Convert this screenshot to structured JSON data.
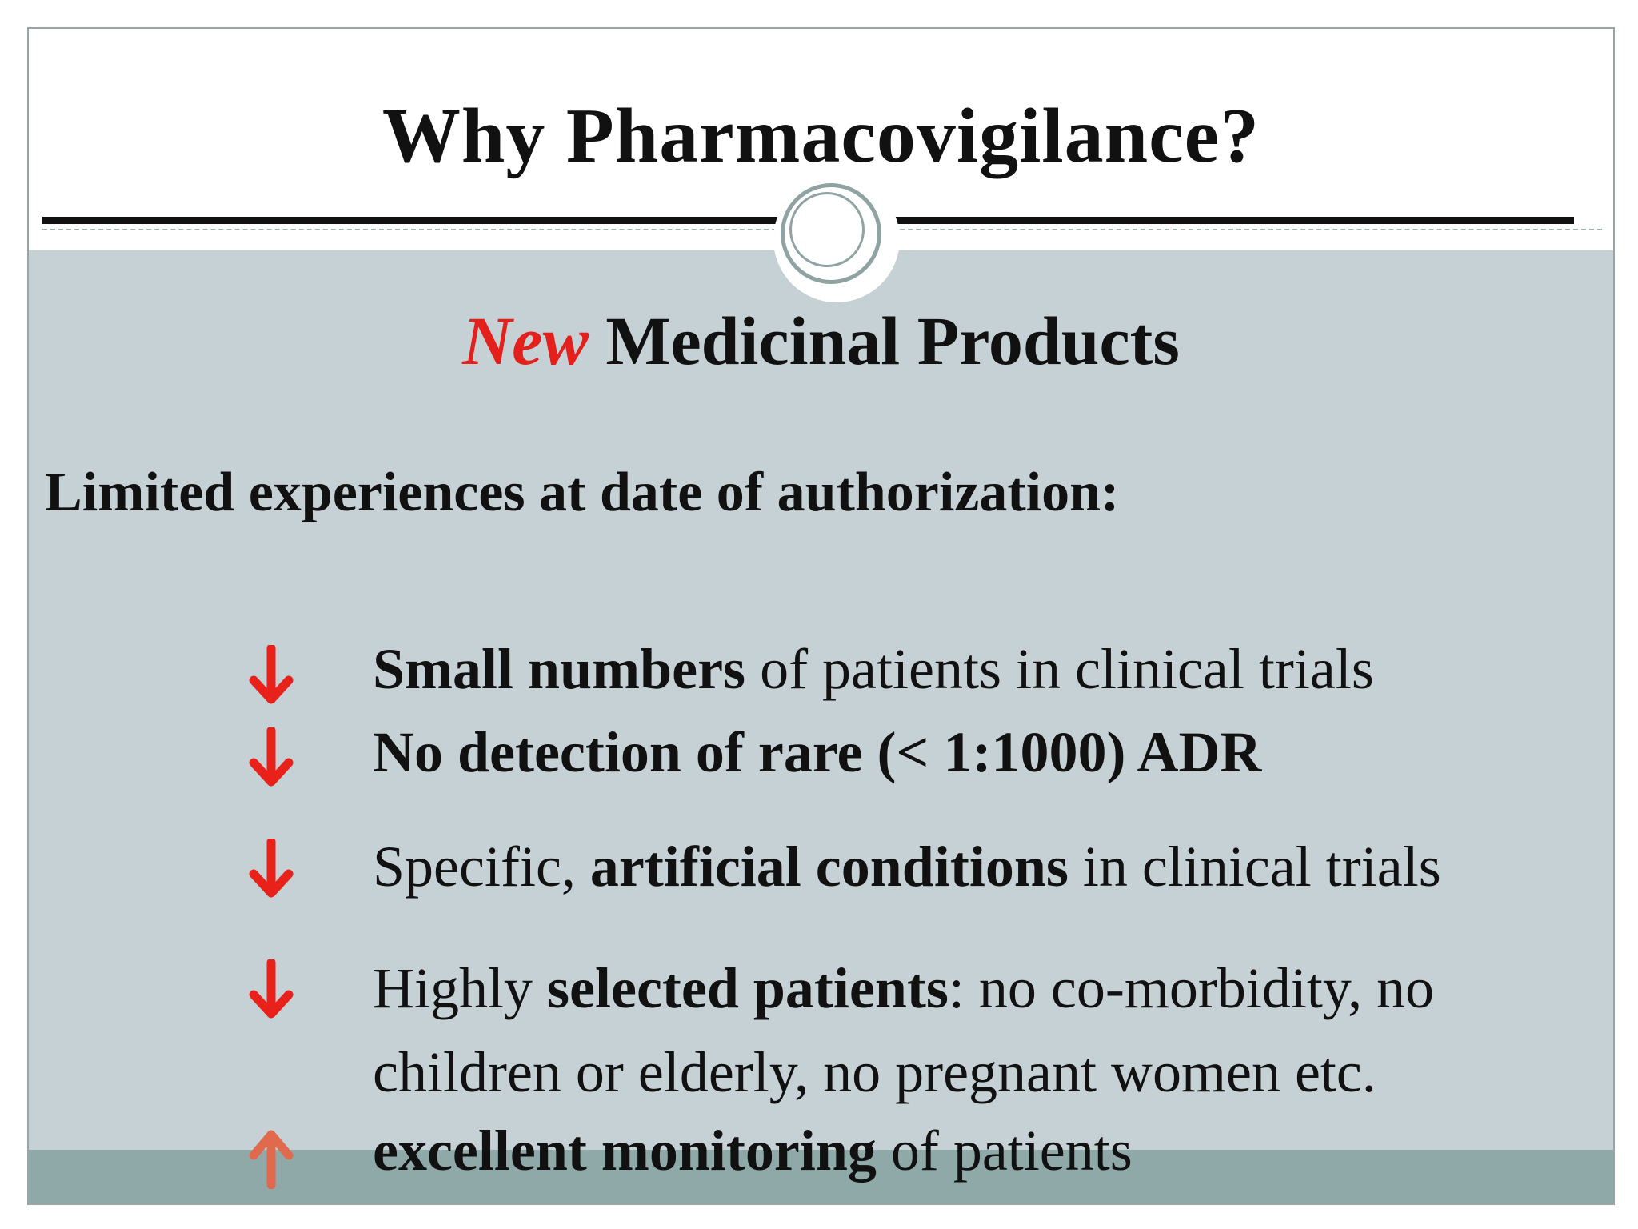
{
  "slide": {
    "title": "Why Pharmacovigilance?",
    "subtitle": {
      "highlight": "New",
      "rest": "Medicinal Products"
    },
    "section_heading": "Limited experiences at date of authorization:",
    "bullets": [
      {
        "direction": "down",
        "icon": "arrow-down-icon",
        "parts": [
          {
            "text": "Small numbers",
            "bold": true
          },
          {
            "text": " of patients in clinical trials",
            "bold": false
          }
        ]
      },
      {
        "direction": "down",
        "icon": "arrow-down-icon",
        "parts": [
          {
            "text": "No detection of rare (< 1:1000) ADR",
            "bold": true
          }
        ]
      },
      {
        "direction": "down",
        "icon": "arrow-down-icon",
        "parts": [
          {
            "text": "Specific, ",
            "bold": false
          },
          {
            "text": "artificial conditions",
            "bold": true
          },
          {
            "text": " in clinical trials",
            "bold": false
          }
        ]
      },
      {
        "direction": "down",
        "icon": "arrow-down-icon",
        "parts": [
          {
            "text": "Highly ",
            "bold": false
          },
          {
            "text": "selected patients",
            "bold": true
          },
          {
            "text": ": no co-morbidity, no",
            "bold": false
          }
        ],
        "continuation": "children or elderly, no pregnant women etc."
      },
      {
        "direction": "up",
        "icon": "arrow-up-icon",
        "parts": [
          {
            "text": "excellent monitoring",
            "bold": true
          },
          {
            "text": " of patients",
            "bold": false
          }
        ]
      }
    ]
  },
  "colors": {
    "down_arrow": "#e8211b",
    "up_arrow": "#e06a4e",
    "highlight_text": "#e3201b",
    "body_background": "#c5d1d5",
    "footer_band": "#8fa9a9"
  }
}
